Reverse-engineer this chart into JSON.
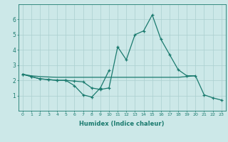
{
  "xlabel": "Humidex (Indice chaleur)",
  "x": [
    0,
    1,
    2,
    3,
    4,
    5,
    6,
    7,
    8,
    9,
    10,
    11,
    12,
    13,
    14,
    15,
    16,
    17,
    18,
    19,
    20,
    21,
    22,
    23
  ],
  "line1": [
    2.4,
    2.25,
    2.1,
    2.05,
    2.0,
    2.0,
    1.95,
    1.9,
    1.5,
    1.4,
    1.5,
    4.2,
    3.35,
    5.0,
    5.25,
    6.3,
    4.7,
    3.7,
    2.7,
    2.3,
    2.3,
    1.05,
    0.85,
    0.7
  ],
  "line2": [
    2.4,
    2.25,
    2.1,
    2.05,
    2.0,
    2.0,
    1.65,
    1.05,
    0.9,
    1.5,
    2.65,
    null,
    null,
    null,
    null,
    null,
    null,
    null,
    null,
    null,
    null,
    null,
    null,
    null
  ],
  "line3": [
    2.4,
    2.3,
    2.25,
    2.22,
    2.2,
    2.2,
    2.2,
    2.2,
    2.2,
    2.2,
    2.2,
    2.2,
    2.2,
    2.2,
    2.2,
    2.2,
    2.2,
    2.2,
    2.2,
    2.25,
    2.3,
    null,
    null,
    null
  ],
  "bg_color": "#cce8e8",
  "grid_color": "#aacfcf",
  "line_color": "#1a7a6e",
  "xlim": [
    -0.5,
    23.5
  ],
  "ylim": [
    0,
    7
  ],
  "yticks": [
    1,
    2,
    3,
    4,
    5,
    6
  ],
  "xtick_fontsize": 4.5,
  "ytick_fontsize": 5.5,
  "xlabel_fontsize": 6.0
}
